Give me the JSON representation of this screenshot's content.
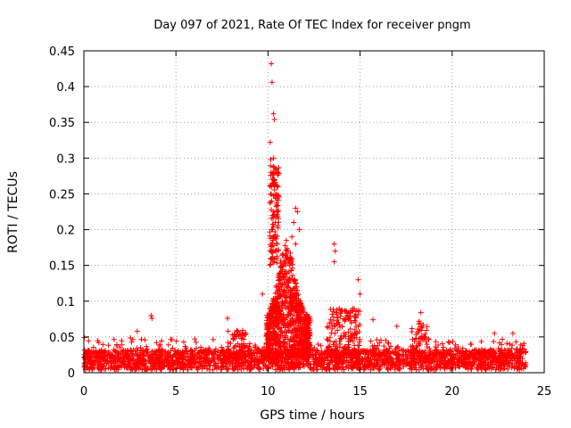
{
  "chart_data": {
    "type": "scatter",
    "title": "Day 097 of 2021, Rate Of TEC Index for receiver pngm",
    "xlabel": "GPS time / hours",
    "ylabel": "ROTI / TECUs",
    "xlim": [
      0,
      25
    ],
    "ylim": [
      0,
      0.45
    ],
    "xticks": [
      0,
      5,
      10,
      15,
      20,
      25
    ],
    "yticks": [
      0,
      0.05,
      0.1,
      0.15,
      0.2,
      0.25,
      0.3,
      0.35,
      0.4,
      0.45
    ],
    "xtick_labels": [
      "0",
      "5",
      "10",
      "15",
      "20",
      "25"
    ],
    "ytick_labels": [
      "0",
      "0.05",
      "0.1",
      "0.15",
      "0.2",
      "0.25",
      "0.3",
      "0.35",
      "0.4",
      "0.45"
    ],
    "grid": true,
    "marker": "+",
    "color": "#ff0000",
    "series": [
      {
        "name": "ROTI",
        "points": [
          [
            10.18,
            0.432
          ],
          [
            10.22,
            0.406
          ],
          [
            10.3,
            0.362
          ],
          [
            10.35,
            0.354
          ],
          [
            10.12,
            0.322
          ],
          [
            10.15,
            0.298
          ],
          [
            10.3,
            0.3
          ],
          [
            10.45,
            0.285
          ],
          [
            10.3,
            0.27
          ],
          [
            10.55,
            0.26
          ],
          [
            10.2,
            0.24
          ],
          [
            10.25,
            0.22
          ],
          [
            10.4,
            0.21
          ],
          [
            10.2,
            0.2
          ],
          [
            10.3,
            0.19
          ],
          [
            10.4,
            0.17
          ],
          [
            10.5,
            0.16
          ],
          [
            11.5,
            0.23
          ],
          [
            11.6,
            0.225
          ],
          [
            11.4,
            0.21
          ],
          [
            11.7,
            0.2
          ],
          [
            11.3,
            0.19
          ],
          [
            11.0,
            0.185
          ],
          [
            11.5,
            0.18
          ],
          [
            13.6,
            0.18
          ],
          [
            13.65,
            0.17
          ],
          [
            13.6,
            0.155
          ],
          [
            14.9,
            0.13
          ],
          [
            15.0,
            0.11
          ],
          [
            9.7,
            0.11
          ],
          [
            8.2,
            0.05
          ],
          [
            7.8,
            0.076
          ],
          [
            3.65,
            0.08
          ],
          [
            3.7,
            0.076
          ],
          [
            15.7,
            0.074
          ],
          [
            18.3,
            0.084
          ],
          [
            18.2,
            0.072
          ],
          [
            22.3,
            0.055
          ],
          [
            23.3,
            0.055
          ],
          [
            2.9,
            0.058
          ],
          [
            17.0,
            0.065
          ],
          [
            16.4,
            0.045
          ],
          [
            19.8,
            0.043
          ],
          [
            21.0,
            0.04
          ]
        ]
      }
    ]
  }
}
